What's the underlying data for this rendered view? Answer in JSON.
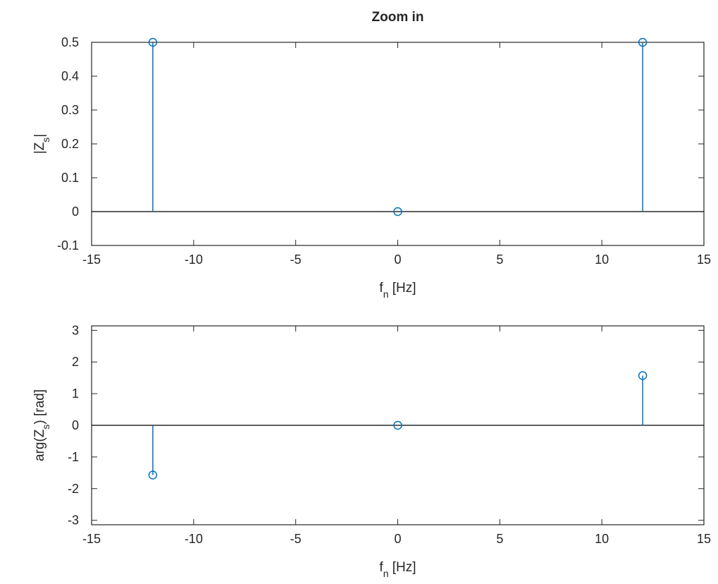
{
  "chart_data": [
    {
      "type": "stem",
      "title": "Zoom in",
      "xlabel": {
        "base": "f",
        "sub": "n",
        "rest": " [Hz]"
      },
      "ylabel": {
        "pre": "|Z",
        "sub": "s",
        "post": "|"
      },
      "xlim": [
        -15,
        15
      ],
      "ylim": [
        -0.1,
        0.5
      ],
      "xticks": [
        -15,
        -10,
        -5,
        0,
        5,
        10,
        15
      ],
      "yticks": [
        -0.1,
        0,
        0.1,
        0.2,
        0.3,
        0.4,
        0.5
      ],
      "ytick_labels": [
        "-0.1",
        "0",
        "0.1",
        "0.2",
        "0.3",
        "0.4",
        "0.5"
      ],
      "baseline": 0,
      "color": "#0072BD",
      "x": [
        -12,
        0,
        12
      ],
      "y": [
        0.5,
        0,
        0.5
      ]
    },
    {
      "type": "stem",
      "title": "",
      "xlabel": {
        "base": "f",
        "sub": "n",
        "rest": " [Hz]"
      },
      "ylabel": {
        "pre": "arg(Z",
        "sub": "s",
        "post": ") [rad]"
      },
      "xlim": [
        -15,
        15
      ],
      "ylim": [
        -3.14159,
        3.14159
      ],
      "xticks": [
        -15,
        -10,
        -5,
        0,
        5,
        10,
        15
      ],
      "yticks": [
        -3,
        -2,
        -1,
        0,
        1,
        2,
        3
      ],
      "ytick_labels": [
        "-3",
        "-2",
        "-1",
        "0",
        "1",
        "2",
        "3"
      ],
      "baseline": 0,
      "color": "#0072BD",
      "x": [
        -12,
        0,
        12
      ],
      "y": [
        -1.5708,
        0,
        1.5708
      ]
    }
  ]
}
